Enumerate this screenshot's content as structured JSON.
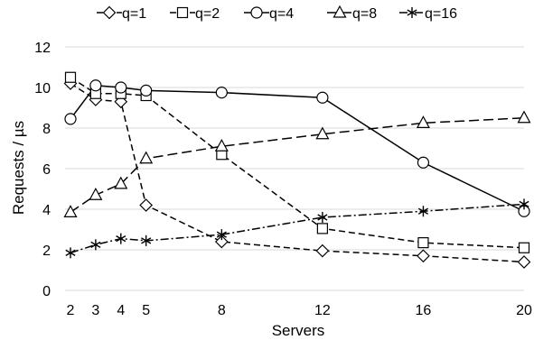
{
  "chart_data": {
    "type": "line",
    "title": "",
    "xlabel": "Servers",
    "ylabel": "Requests / µs",
    "x": [
      2,
      3,
      4,
      5,
      8,
      12,
      16,
      20
    ],
    "xticks": [
      "2",
      "3",
      "4",
      "5",
      "8",
      "12",
      "16",
      "20"
    ],
    "xlim": [
      2,
      20
    ],
    "ylim": [
      0,
      12
    ],
    "yticks": [
      "0",
      "2",
      "4",
      "6",
      "8",
      "10",
      "12"
    ],
    "grid": "horizontal",
    "legend_position": "top",
    "series": [
      {
        "name": "q=1",
        "marker": "diamond",
        "dash": "dashed",
        "values": [
          10.2,
          9.4,
          9.3,
          4.2,
          2.4,
          1.95,
          1.7,
          1.4
        ]
      },
      {
        "name": "q=2",
        "marker": "square",
        "dash": "dashed",
        "values": [
          10.5,
          9.7,
          9.7,
          9.6,
          6.7,
          3.05,
          2.35,
          2.1
        ]
      },
      {
        "name": "q=4",
        "marker": "circle",
        "dash": "solid",
        "values": [
          8.45,
          10.1,
          10.0,
          9.85,
          9.75,
          9.5,
          6.3,
          3.9
        ]
      },
      {
        "name": "q=8",
        "marker": "triangle",
        "dash": "long-dash",
        "values": [
          3.85,
          4.7,
          5.25,
          6.5,
          7.1,
          7.7,
          8.25,
          8.5
        ]
      },
      {
        "name": "q=16",
        "marker": "asterisk",
        "dash": "dash-dot",
        "values": [
          1.85,
          2.25,
          2.55,
          2.45,
          2.75,
          3.6,
          3.9,
          4.25
        ]
      }
    ]
  }
}
